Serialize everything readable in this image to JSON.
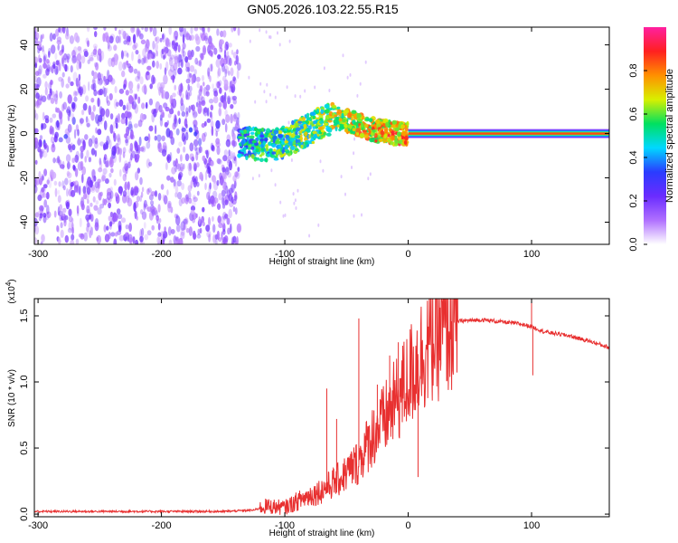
{
  "figure": {
    "title": "GN05.2026.103.22.55.R15"
  },
  "chart_data": [
    {
      "type": "heatmap",
      "xlabel": "Height of straight line (km)",
      "ylabel": "Frequency (Hz)",
      "xlim": [
        -303,
        163
      ],
      "ylim": [
        -50,
        48
      ],
      "xticks": [
        -300,
        -200,
        -100,
        0,
        100
      ],
      "xtick_labels": [
        "-300",
        "-200",
        "-100",
        "0",
        "100"
      ],
      "yticks": [
        -40,
        -20,
        0,
        20,
        40
      ],
      "ytick_labels": [
        "-40",
        "-20",
        "0",
        "20",
        "40"
      ],
      "colorbar": {
        "label": "Normalized spectral amplitude",
        "range": [
          0.0,
          1.0
        ],
        "ticks": [
          0.0,
          0.2,
          0.4,
          0.6,
          0.8
        ],
        "tick_labels": [
          "0.0",
          "0.2",
          "0.4",
          "0.6",
          "0.8"
        ],
        "colormap": [
          "#ffffff",
          "#b070ff",
          "#6a2cff",
          "#2a3cff",
          "#00d8ff",
          "#00e060",
          "#d8f000",
          "#ff9000",
          "#ff2020",
          "#ff20a0"
        ]
      },
      "regions": {
        "noise_x_range": [
          -303,
          -137
        ],
        "signal_x_range": [
          -137,
          0
        ],
        "tone_x_range": [
          0,
          163
        ],
        "tone_frequency": 0
      },
      "ridge": {
        "x": [
          -140,
          -130,
          -120,
          -110,
          -100,
          -90,
          -80,
          -70,
          -60,
          -50,
          -40,
          -30,
          -20,
          -10,
          0
        ],
        "y": [
          -3,
          -4,
          -5,
          -5,
          -4,
          -1,
          2,
          5,
          7,
          6,
          4,
          2,
          1,
          0,
          0
        ]
      },
      "grid": false
    },
    {
      "type": "line",
      "xlabel": "Height of straight line (km)",
      "ylabel": "SNR (10 * v/v)",
      "y_multiplier_label": "(x10",
      "y_multiplier_exp": "4",
      "xlim": [
        -303,
        163
      ],
      "ylim": [
        -0.02,
        1.63
      ],
      "xticks": [
        -300,
        -200,
        -100,
        0,
        100
      ],
      "xtick_labels": [
        "-300",
        "-200",
        "-100",
        "0",
        "100"
      ],
      "yticks": [
        0.0,
        0.5,
        1.0,
        1.5
      ],
      "ytick_labels": [
        "0.0",
        "0.5",
        "1.0",
        "1.5"
      ],
      "color": "#e83030",
      "series": [
        {
          "x": [
            -303,
            -250,
            -200,
            -150,
            -125,
            -115,
            -100,
            -85,
            -70,
            -55,
            -40,
            -30,
            -20,
            -10,
            0,
            10,
            20,
            30,
            40,
            60,
            80,
            90,
            100,
            110,
            130,
            150,
            163
          ],
          "y": [
            0.02,
            0.02,
            0.02,
            0.02,
            0.03,
            0.06,
            0.05,
            0.12,
            0.18,
            0.27,
            0.4,
            0.58,
            0.7,
            0.85,
            1.02,
            1.2,
            1.33,
            1.4,
            1.46,
            1.47,
            1.45,
            1.44,
            1.42,
            1.38,
            1.35,
            1.3,
            1.26
          ]
        }
      ],
      "spikes": [
        {
          "x": -66,
          "y": 0.95
        },
        {
          "x": -58,
          "y": 0.72
        },
        {
          "x": -40,
          "y": 1.48
        },
        {
          "x": -34,
          "y": 0.6
        },
        {
          "x": -25,
          "y": 0.98
        },
        {
          "x": -15,
          "y": 1.2
        },
        {
          "x": -8,
          "y": 1.3
        },
        {
          "x": 8,
          "y": 0.28
        },
        {
          "x": 100,
          "y": 1.66
        },
        {
          "x": 101,
          "y": 1.05
        }
      ],
      "grid": false
    }
  ]
}
